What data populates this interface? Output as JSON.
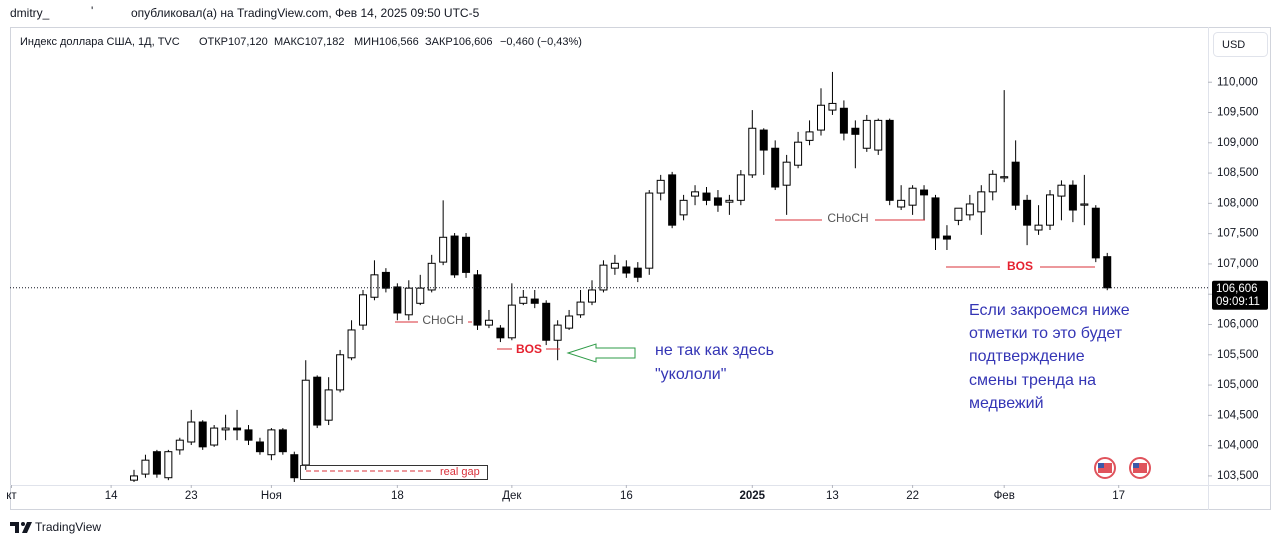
{
  "header": {
    "user": "dmitry_",
    "mark": "'",
    "published": "опубликовал(а) на TradingView.com, Фев 14, 2025 09:50 UTC-5"
  },
  "footer": {
    "brand": "TradingView"
  },
  "currency": "USD",
  "chart_data": {
    "type": "candlestick",
    "legend": {
      "symbol": "Индекс доллара США, 1Д, TVC",
      "open": "ОТКР107,120",
      "high": "МАКС107,182",
      "low": "МИН106,566",
      "close": "ЗАКР106,606",
      "change": "−0,460 (−0,43%)"
    },
    "up_color": "#ffffff",
    "down_color": "#000000",
    "border_color": "#000000",
    "open": [
      103.43,
      103.53,
      103.9,
      103.47,
      103.93,
      104.06,
      104.39,
      104.01,
      104.26,
      104.29,
      104.26,
      104.06,
      103.85,
      104.26,
      103.85,
      103.68,
      105.13,
      104.42,
      104.92,
      105.45,
      105.99,
      106.45,
      106.86,
      106.62,
      106.16,
      106.35,
      106.57,
      107.03,
      107.46,
      107.44,
      106.82,
      105.99,
      105.94,
      105.78,
      106.35,
      106.42,
      106.35,
      105.74,
      105.94,
      106.16,
      106.37,
      106.57,
      106.93,
      106.95,
      106.93,
      106.93,
      108.17,
      108.47,
      107.81,
      108.12,
      108.17,
      108.09,
      108.02,
      108.05,
      108.47,
      109.21,
      108.91,
      108.3,
      108.63,
      109.04,
      109.21,
      109.54,
      109.57,
      109.24,
      108.91,
      108.88,
      109.37,
      107.94,
      107.97,
      108.22,
      108.09,
      107.46,
      107.72,
      107.81,
      107.86,
      108.19,
      108.42,
      108.68,
      108.05,
      107.56,
      107.64,
      108.12,
      108.3,
      107.97,
      107.92,
      107.12
    ],
    "high": [
      103.6,
      103.85,
      103.93,
      103.93,
      104.13,
      104.59,
      104.42,
      104.34,
      104.51,
      104.59,
      104.34,
      104.13,
      104.29,
      104.29,
      103.9,
      105.41,
      105.16,
      105.13,
      105.58,
      106.07,
      106.57,
      107.06,
      106.93,
      106.68,
      106.73,
      106.82,
      107.15,
      108.05,
      107.51,
      107.51,
      106.9,
      106.24,
      105.99,
      106.68,
      106.57,
      106.57,
      106.4,
      106.07,
      106.24,
      106.57,
      106.73,
      107.06,
      107.15,
      107.06,
      107.03,
      108.22,
      108.47,
      108.52,
      108.14,
      108.3,
      108.27,
      108.22,
      108.14,
      108.55,
      109.54,
      109.24,
      109.04,
      108.8,
      109.18,
      109.37,
      109.9,
      110.17,
      109.7,
      109.37,
      109.46,
      109.4,
      109.4,
      108.3,
      108.3,
      108.3,
      108.14,
      107.64,
      107.92,
      108.14,
      108.3,
      108.55,
      109.87,
      109.04,
      108.14,
      107.97,
      108.22,
      108.38,
      108.38,
      108.47,
      107.97,
      107.182
    ],
    "low": [
      103.4,
      103.47,
      103.47,
      103.43,
      103.85,
      104.01,
      103.93,
      103.98,
      104.09,
      104.09,
      104.01,
      103.85,
      103.76,
      103.85,
      103.4,
      103.6,
      104.29,
      104.34,
      104.88,
      105.41,
      105.91,
      106.4,
      106.53,
      106.07,
      106.07,
      106.32,
      106.53,
      106.98,
      106.77,
      106.77,
      105.91,
      105.94,
      105.71,
      105.74,
      106.32,
      106.27,
      105.66,
      105.41,
      105.91,
      106.11,
      106.32,
      106.53,
      106.82,
      106.77,
      106.7,
      106.82,
      108.05,
      107.59,
      107.72,
      107.97,
      107.97,
      107.86,
      107.81,
      107.97,
      108.42,
      108.47,
      108.22,
      107.81,
      108.58,
      108.96,
      109.12,
      109.46,
      109.04,
      108.58,
      108.85,
      108.8,
      107.97,
      107.89,
      107.81,
      107.72,
      107.23,
      107.23,
      107.64,
      107.72,
      107.48,
      108.05,
      108.35,
      107.89,
      107.31,
      107.48,
      107.56,
      107.72,
      107.69,
      107.64,
      107.03,
      106.566
    ],
    "close": [
      103.5,
      103.76,
      103.53,
      103.9,
      104.09,
      104.39,
      103.98,
      104.29,
      104.29,
      104.26,
      104.09,
      103.9,
      104.26,
      103.9,
      103.47,
      105.08,
      104.34,
      104.92,
      105.5,
      105.91,
      106.49,
      106.82,
      106.6,
      106.19,
      106.6,
      106.6,
      107.01,
      107.44,
      106.82,
      106.86,
      105.99,
      106.07,
      105.78,
      106.32,
      106.45,
      106.35,
      105.74,
      105.99,
      106.14,
      106.37,
      106.57,
      106.98,
      107.01,
      106.85,
      106.78,
      108.17,
      108.38,
      107.64,
      108.05,
      108.19,
      108.05,
      107.97,
      108.05,
      108.47,
      109.24,
      108.88,
      108.27,
      108.68,
      109.01,
      109.18,
      109.62,
      109.65,
      109.16,
      109.14,
      109.37,
      109.37,
      108.05,
      108.05,
      108.25,
      108.14,
      107.43,
      107.41,
      107.92,
      107.99,
      108.19,
      108.48,
      108.44,
      107.97,
      107.64,
      107.64,
      108.14,
      108.3,
      107.89,
      107.99,
      107.1,
      106.606
    ],
    "xlim": [
      -10.83,
      93.8
    ],
    "xticks": [
      {
        "value": -10.7,
        "label": "кт"
      },
      {
        "value": -2,
        "label": "14"
      },
      {
        "value": 5,
        "label": "23"
      },
      {
        "value": 12,
        "label": "Ноя"
      },
      {
        "value": 23,
        "label": "18"
      },
      {
        "value": 33,
        "label": "Дек"
      },
      {
        "value": 43,
        "label": "16"
      },
      {
        "value": 54,
        "label": "2025"
      },
      {
        "value": 61,
        "label": "13"
      },
      {
        "value": 68,
        "label": "22"
      },
      {
        "value": 76,
        "label": "Фев"
      },
      {
        "value": 86,
        "label": "17"
      }
    ],
    "ylim": [
      103.35,
      110.4
    ],
    "yticks": [
      {
        "value": 103.5,
        "label": "103,500"
      },
      {
        "value": 104,
        "label": "104,000"
      },
      {
        "value": 104.5,
        "label": "104,500"
      },
      {
        "value": 105,
        "label": "105,000"
      },
      {
        "value": 105.5,
        "label": "105,500"
      },
      {
        "value": 106,
        "label": "106,000"
      },
      {
        "value": 106.5,
        "label": "106,500"
      },
      {
        "value": 107,
        "label": "107,000"
      },
      {
        "value": 107.5,
        "label": "107,500"
      },
      {
        "value": 108,
        "label": "108,000"
      },
      {
        "value": 108.5,
        "label": "108,500"
      },
      {
        "value": 109,
        "label": "109,000"
      },
      {
        "value": 109.5,
        "label": "109,500"
      },
      {
        "value": 110,
        "label": "110,000"
      }
    ],
    "grid": false,
    "last_price": {
      "value": 106.606,
      "label": "106,606"
    },
    "countdown": "09:09:11",
    "annotations": {
      "real_gap": "real gap",
      "choch_1": "CHoCH",
      "bos_1": "BOS",
      "comment": [
        "не так как здесь",
        "\"укололи\""
      ],
      "choch_2": "CHoCH",
      "bos_2": "BOS",
      "note": [
        "Если закроемся ниже",
        "отметки то это будет",
        "подтверждение",
        "смены тренда на",
        "медвежий"
      ]
    }
  }
}
